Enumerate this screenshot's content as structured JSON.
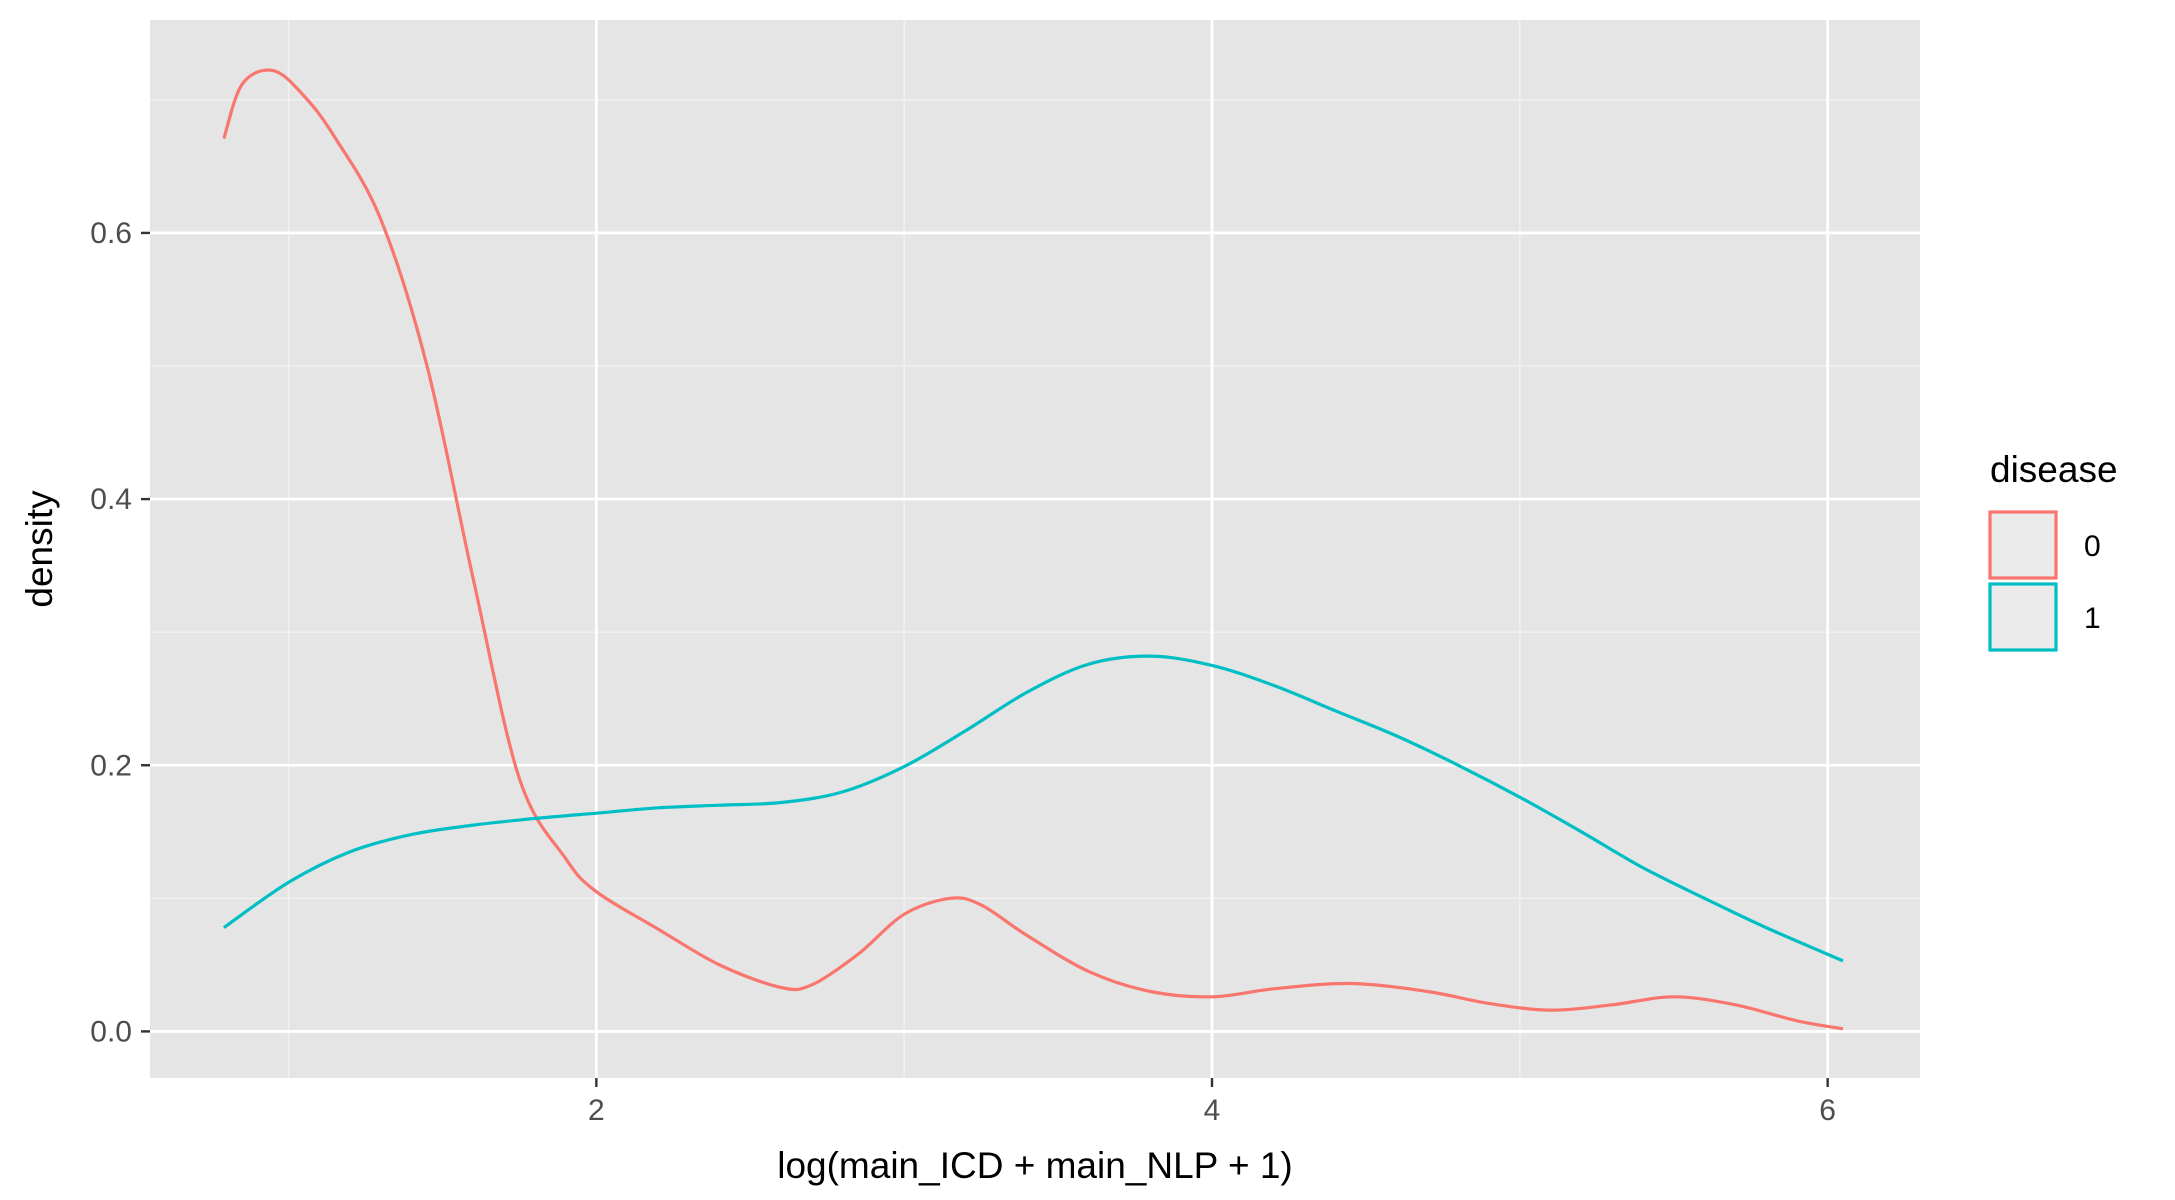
{
  "chart_data": {
    "type": "line",
    "xlabel": "log(main_ICD + main_NLP + 1)",
    "ylabel": "density",
    "xlim": [
      0.55,
      6.3
    ],
    "ylim": [
      -0.035,
      0.76
    ],
    "x_ticks_major": [
      2,
      4,
      6
    ],
    "x_ticks_minor": [
      1,
      3,
      5
    ],
    "x_tick_labels": [
      "2",
      "4",
      "6"
    ],
    "y_ticks_major": [
      0.0,
      0.2,
      0.4,
      0.6
    ],
    "y_ticks_minor": [
      0.1,
      0.3,
      0.5,
      0.7
    ],
    "y_tick_labels": [
      "0.0",
      "0.2",
      "0.4",
      "0.6"
    ],
    "grid": true,
    "background": "#e5e5e5",
    "legend": {
      "title": "disease",
      "position": "right",
      "entries": [
        "0",
        "1"
      ]
    },
    "series": [
      {
        "name": "0",
        "color": "#f8766d",
        "x": [
          0.79,
          0.85,
          0.95,
          1.05,
          1.15,
          1.3,
          1.45,
          1.6,
          1.75,
          1.9,
          2.0,
          2.2,
          2.4,
          2.6,
          2.7,
          2.85,
          3.0,
          3.15,
          3.25,
          3.4,
          3.6,
          3.8,
          4.0,
          4.2,
          4.45,
          4.7,
          4.9,
          5.1,
          5.3,
          5.5,
          5.7,
          5.9,
          6.05
        ],
        "y": [
          0.671,
          0.712,
          0.722,
          0.703,
          0.672,
          0.61,
          0.5,
          0.34,
          0.19,
          0.13,
          0.105,
          0.077,
          0.05,
          0.033,
          0.035,
          0.058,
          0.088,
          0.1,
          0.095,
          0.072,
          0.045,
          0.03,
          0.026,
          0.032,
          0.036,
          0.03,
          0.021,
          0.016,
          0.02,
          0.026,
          0.02,
          0.008,
          0.002
        ]
      },
      {
        "name": "1",
        "color": "#00bfc4",
        "x": [
          0.79,
          1.0,
          1.2,
          1.4,
          1.6,
          1.8,
          2.0,
          2.2,
          2.4,
          2.6,
          2.8,
          3.0,
          3.2,
          3.4,
          3.6,
          3.8,
          4.0,
          4.2,
          4.4,
          4.6,
          4.8,
          5.0,
          5.2,
          5.4,
          5.6,
          5.8,
          6.05
        ],
        "y": [
          0.078,
          0.112,
          0.135,
          0.148,
          0.155,
          0.16,
          0.164,
          0.168,
          0.17,
          0.172,
          0.18,
          0.199,
          0.226,
          0.255,
          0.276,
          0.282,
          0.275,
          0.26,
          0.241,
          0.222,
          0.2,
          0.176,
          0.15,
          0.123,
          0.1,
          0.078,
          0.053
        ]
      }
    ]
  }
}
